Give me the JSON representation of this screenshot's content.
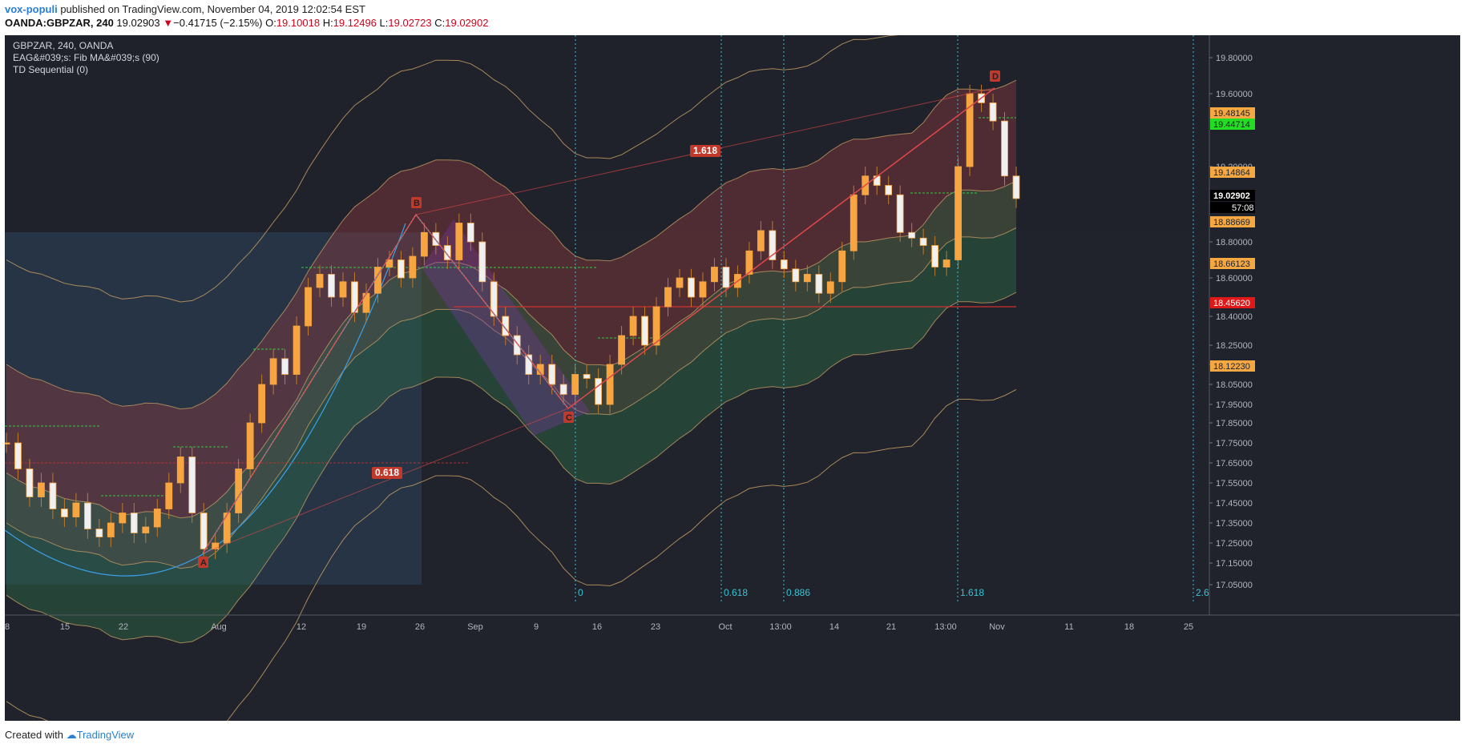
{
  "header": {
    "user": "vox-populi",
    "published": " published on TradingView.com, November 04, 2019 12:02:54 EST",
    "symbol": "OANDA:GBPZAR, 240",
    "last": "19.02903",
    "change_arrow": "▼",
    "change": "−0.41715 (−2.15%)",
    "o_label": "O:",
    "o": "19.10018",
    "h_label": "H:",
    "h": "19.12496",
    "l_label": "L:",
    "l": "19.02723",
    "c_label": "C:",
    "c": "19.02902"
  },
  "legend": {
    "title": "GBPZAR, 240, OANDA",
    "indicator1": "EAG&#039;s: Fib MA&#039;s (90)",
    "indicator2": "TD Sequential (0)"
  },
  "footer": {
    "created": "Created with",
    "brand": "TradingView"
  },
  "colors": {
    "background": "#20232b",
    "candle": "#f7a540",
    "band_line": "#c29a63",
    "pattern": "#e04848",
    "fib_time": "#36c3d6",
    "support": "#d0312d",
    "arc": "#3aa0e8"
  },
  "chart_data": {
    "type": "candlestick",
    "price_axis": {
      "ticks": [
        "19.80000",
        "19.60000",
        "19.20000",
        "18.80000",
        "18.60000",
        "18.40000",
        "18.25000",
        "18.15000",
        "18.05000",
        "17.95000",
        "17.85000",
        "17.75000",
        "17.65000",
        "17.55000",
        "17.45000",
        "17.35000",
        "17.25000",
        "17.15000",
        "17.05000"
      ],
      "scale": "non-linear"
    },
    "time_axis": {
      "ticks": [
        "8",
        "15",
        "22",
        "Aug",
        "12",
        "19",
        "26",
        "Sep",
        "9",
        "16",
        "23",
        "Oct",
        "13:00",
        "14",
        "21",
        "13:00",
        "Nov",
        "11",
        "18",
        "25"
      ]
    },
    "price_labels": [
      {
        "value": "19.48145",
        "kind": "ma"
      },
      {
        "value": "19.44714",
        "kind": "ma-green"
      },
      {
        "value": "19.14864",
        "kind": "ma"
      },
      {
        "value": "19.02902",
        "kind": "last"
      },
      {
        "value": "57:08",
        "kind": "countdown"
      },
      {
        "value": "18.88669",
        "kind": "ma"
      },
      {
        "value": "18.66123",
        "kind": "ma"
      },
      {
        "value": "18.45620",
        "kind": "support"
      },
      {
        "value": "18.12230",
        "kind": "ma"
      }
    ],
    "pattern_points": [
      {
        "label": "A",
        "price": 17.22
      },
      {
        "label": "B",
        "price": 18.92
      },
      {
        "label": "C",
        "price": 17.93
      },
      {
        "label": "D",
        "price": 19.66
      }
    ],
    "fib_labels": [
      "1.618",
      "0.618"
    ],
    "fib_time_zones": [
      "0",
      "0.618",
      "0.886",
      "1.618",
      "2.6"
    ],
    "close_series": [
      17.75,
      17.62,
      17.48,
      17.55,
      17.42,
      17.38,
      17.45,
      17.32,
      17.28,
      17.35,
      17.4,
      17.3,
      17.33,
      17.42,
      17.55,
      17.68,
      17.4,
      17.22,
      17.25,
      17.4,
      17.62,
      17.85,
      18.05,
      18.18,
      18.1,
      18.35,
      18.55,
      18.62,
      18.5,
      18.58,
      18.42,
      18.52,
      18.66,
      18.7,
      18.6,
      18.72,
      18.85,
      18.78,
      18.7,
      18.9,
      18.8,
      18.58,
      18.4,
      18.3,
      18.2,
      18.1,
      18.15,
      18.05,
      18.0,
      18.1,
      18.08,
      17.95,
      18.15,
      18.3,
      18.4,
      18.25,
      18.45,
      18.55,
      18.6,
      18.5,
      18.58,
      18.66,
      18.55,
      18.62,
      18.75,
      18.86,
      18.7,
      18.65,
      18.58,
      18.62,
      18.52,
      18.58,
      18.75,
      19.05,
      19.15,
      19.1,
      19.05,
      18.85,
      18.82,
      18.78,
      18.66,
      18.7,
      19.2,
      19.6,
      19.55,
      19.45,
      19.15,
      19.03
    ]
  }
}
